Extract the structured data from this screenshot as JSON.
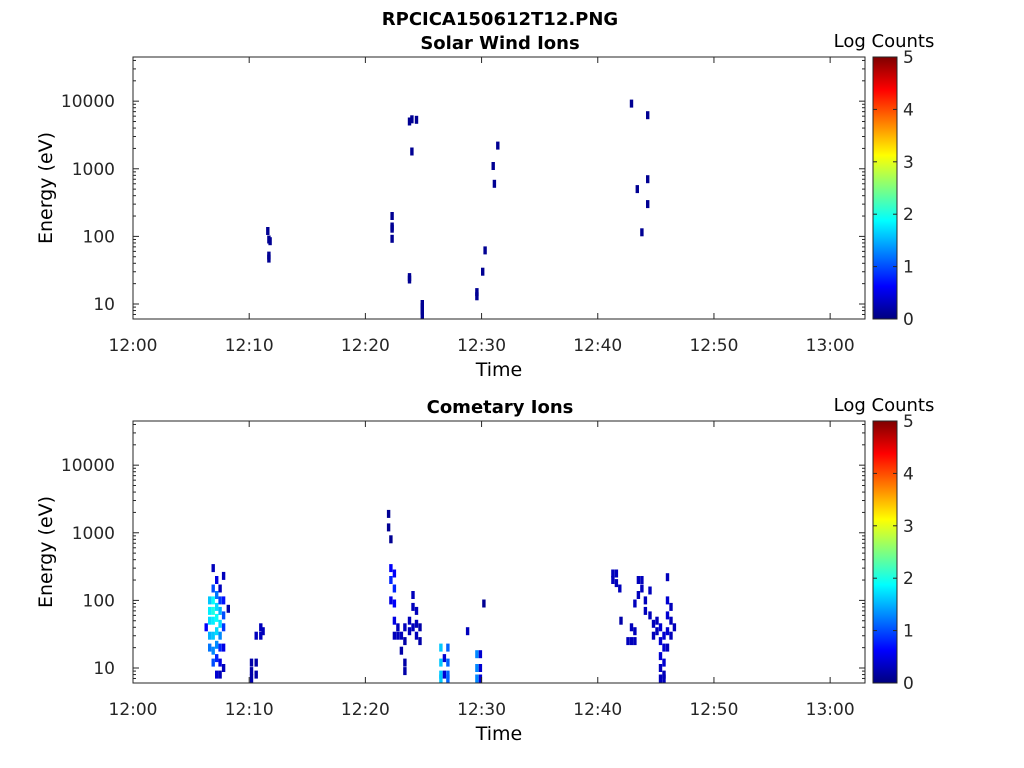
{
  "figure_title": "RPCICA150612T12.PNG",
  "colors": {
    "axis": "#262626",
    "colormap": [
      "#00007f",
      "#0000ff",
      "#007fff",
      "#00ffff",
      "#7fff7f",
      "#ffff00",
      "#ff7f00",
      "#ff0000",
      "#7f0000"
    ]
  },
  "chart_data": [
    {
      "type": "heatmap",
      "title": "Solar Wind Ions",
      "xlabel": "Time",
      "ylabel": "Energy (eV)",
      "x_range": [
        "12:00",
        "13:03"
      ],
      "y_range": [
        6,
        45000
      ],
      "y_scale": "log",
      "x_ticks": [
        "12:00",
        "12:10",
        "12:20",
        "12:30",
        "12:40",
        "12:50",
        "13:00"
      ],
      "y_ticks": [
        "10",
        "100",
        "1000",
        "10000"
      ],
      "colorbar": {
        "label": "Log Counts",
        "range": [
          0,
          5
        ],
        "ticks": [
          "0",
          "1",
          "2",
          "3",
          "4",
          "5"
        ]
      },
      "grid": false,
      "cells": [
        {
          "t": "12:11.6",
          "e": 120,
          "v": 0.1
        },
        {
          "t": "12:11.7",
          "e": 90,
          "v": 0.1
        },
        {
          "t": "12:11.8",
          "e": 85,
          "v": 0.1
        },
        {
          "t": "12:11.7",
          "e": 52,
          "v": 0.1
        },
        {
          "t": "12:11.7",
          "e": 47,
          "v": 0.1
        },
        {
          "t": "12:22.3",
          "e": 200,
          "v": 0.1
        },
        {
          "t": "12:22.3",
          "e": 140,
          "v": 0.1
        },
        {
          "t": "12:22.3",
          "e": 130,
          "v": 0.1
        },
        {
          "t": "12:22.3",
          "e": 92,
          "v": 0.1
        },
        {
          "t": "12:23.8",
          "e": 25,
          "v": 0.1
        },
        {
          "t": "12:23.8",
          "e": 23,
          "v": 0.1
        },
        {
          "t": "12:23.8",
          "e": 5000,
          "v": 0.1
        },
        {
          "t": "12:24.0",
          "e": 5400,
          "v": 0.1
        },
        {
          "t": "12:24.4",
          "e": 5300,
          "v": 0.1
        },
        {
          "t": "12:24.0",
          "e": 1800,
          "v": 0.1
        },
        {
          "t": "12:24.9",
          "e": 10,
          "v": 0.1
        },
        {
          "t": "12:24.9",
          "e": 9,
          "v": 0.1
        },
        {
          "t": "12:24.9",
          "e": 8,
          "v": 0.1
        },
        {
          "t": "12:24.9",
          "e": 7,
          "v": 0.1
        },
        {
          "t": "12:29.6",
          "e": 15,
          "v": 0.1
        },
        {
          "t": "12:29.6",
          "e": 13,
          "v": 0.1
        },
        {
          "t": "12:30.1",
          "e": 30,
          "v": 0.1
        },
        {
          "t": "12:30.3",
          "e": 62,
          "v": 0.1
        },
        {
          "t": "12:31.0",
          "e": 1100,
          "v": 0.1
        },
        {
          "t": "12:31.1",
          "e": 600,
          "v": 0.1
        },
        {
          "t": "12:31.4",
          "e": 2200,
          "v": 0.1
        },
        {
          "t": "12:42.9",
          "e": 9200,
          "v": 0.1
        },
        {
          "t": "12:44.3",
          "e": 6200,
          "v": 0.1
        },
        {
          "t": "12:43.4",
          "e": 500,
          "v": 0.1
        },
        {
          "t": "12:44.3",
          "e": 700,
          "v": 0.1
        },
        {
          "t": "12:44.3",
          "e": 300,
          "v": 0.1
        },
        {
          "t": "12:43.8",
          "e": 115,
          "v": 0.1
        }
      ]
    },
    {
      "type": "heatmap",
      "title": "Cometary Ions",
      "xlabel": "Time",
      "ylabel": "Energy (eV)",
      "x_range": [
        "12:00",
        "13:03"
      ],
      "y_range": [
        6,
        45000
      ],
      "y_scale": "log",
      "x_ticks": [
        "12:00",
        "12:10",
        "12:20",
        "12:30",
        "12:40",
        "12:50",
        "13:00"
      ],
      "y_ticks": [
        "10",
        "100",
        "1000",
        "10000"
      ],
      "colorbar": {
        "label": "Log Counts",
        "range": [
          0,
          5
        ],
        "ticks": [
          "0",
          "1",
          "2",
          "3",
          "4",
          "5"
        ]
      },
      "grid": false,
      "cells": [
        {
          "t": "12:06.3",
          "e": 40,
          "v": 0.6
        },
        {
          "t": "12:06.6",
          "e": 100,
          "v": 1.6
        },
        {
          "t": "12:06.6",
          "e": 70,
          "v": 1.8
        },
        {
          "t": "12:06.6",
          "e": 50,
          "v": 1.7
        },
        {
          "t": "12:06.6",
          "e": 30,
          "v": 1.5
        },
        {
          "t": "12:06.6",
          "e": 20,
          "v": 1.2
        },
        {
          "t": "12:06.9",
          "e": 300,
          "v": 0.3
        },
        {
          "t": "12:06.9",
          "e": 150,
          "v": 1.0
        },
        {
          "t": "12:06.9",
          "e": 100,
          "v": 1.9
        },
        {
          "t": "12:06.9",
          "e": 70,
          "v": 2.0
        },
        {
          "t": "12:06.9",
          "e": 50,
          "v": 1.8
        },
        {
          "t": "12:06.9",
          "e": 30,
          "v": 1.6
        },
        {
          "t": "12:06.9",
          "e": 18,
          "v": 1.3
        },
        {
          "t": "12:06.9",
          "e": 12,
          "v": 1.0
        },
        {
          "t": "12:07.2",
          "e": 200,
          "v": 0.5
        },
        {
          "t": "12:07.2",
          "e": 120,
          "v": 1.2
        },
        {
          "t": "12:07.2",
          "e": 80,
          "v": 1.7
        },
        {
          "t": "12:07.2",
          "e": 55,
          "v": 1.9
        },
        {
          "t": "12:07.2",
          "e": 35,
          "v": 1.7
        },
        {
          "t": "12:07.2",
          "e": 22,
          "v": 1.3
        },
        {
          "t": "12:07.2",
          "e": 14,
          "v": 0.8
        },
        {
          "t": "12:07.2",
          "e": 8,
          "v": 0.4
        },
        {
          "t": "12:07.5",
          "e": 150,
          "v": 0.3
        },
        {
          "t": "12:07.5",
          "e": 100,
          "v": 0.9
        },
        {
          "t": "12:07.5",
          "e": 70,
          "v": 1.5
        },
        {
          "t": "12:07.5",
          "e": 45,
          "v": 1.7
        },
        {
          "t": "12:07.5",
          "e": 30,
          "v": 1.3
        },
        {
          "t": "12:07.5",
          "e": 20,
          "v": 0.8
        },
        {
          "t": "12:07.5",
          "e": 12,
          "v": 0.5
        },
        {
          "t": "12:07.5",
          "e": 8,
          "v": 0.3
        },
        {
          "t": "12:07.8",
          "e": 230,
          "v": 0.3
        },
        {
          "t": "12:07.8",
          "e": 100,
          "v": 0.7
        },
        {
          "t": "12:07.8",
          "e": 60,
          "v": 1.0
        },
        {
          "t": "12:07.8",
          "e": 40,
          "v": 0.9
        },
        {
          "t": "12:07.8",
          "e": 20,
          "v": 0.5
        },
        {
          "t": "12:07.8",
          "e": 10,
          "v": 0.3
        },
        {
          "t": "12:08.2",
          "e": 75,
          "v": 0.2
        },
        {
          "t": "12:10.2",
          "e": 12,
          "v": 0.2
        },
        {
          "t": "12:10.2",
          "e": 9,
          "v": 0.2
        },
        {
          "t": "12:10.2",
          "e": 7,
          "v": 0.2
        },
        {
          "t": "12:10.6",
          "e": 30,
          "v": 0.3
        },
        {
          "t": "12:10.6",
          "e": 12,
          "v": 0.2
        },
        {
          "t": "12:10.6",
          "e": 8,
          "v": 0.2
        },
        {
          "t": "12:11.0",
          "e": 40,
          "v": 0.3
        },
        {
          "t": "12:11.0",
          "e": 30,
          "v": 0.3
        },
        {
          "t": "12:11.2",
          "e": 35,
          "v": 0.3
        },
        {
          "t": "12:22.0",
          "e": 1900,
          "v": 0.1
        },
        {
          "t": "12:22.0",
          "e": 1200,
          "v": 0.1
        },
        {
          "t": "12:22.2",
          "e": 800,
          "v": 0.1
        },
        {
          "t": "12:22.2",
          "e": 300,
          "v": 0.6
        },
        {
          "t": "12:22.2",
          "e": 200,
          "v": 0.8
        },
        {
          "t": "12:22.2",
          "e": 100,
          "v": 0.5
        },
        {
          "t": "12:22.5",
          "e": 250,
          "v": 0.6
        },
        {
          "t": "12:22.5",
          "e": 150,
          "v": 0.8
        },
        {
          "t": "12:22.5",
          "e": 90,
          "v": 0.6
        },
        {
          "t": "12:22.5",
          "e": 50,
          "v": 0.5
        },
        {
          "t": "12:22.5",
          "e": 30,
          "v": 0.3
        },
        {
          "t": "12:22.8",
          "e": 40,
          "v": 0.3
        },
        {
          "t": "12:22.8",
          "e": 30,
          "v": 0.3
        },
        {
          "t": "12:23.1",
          "e": 30,
          "v": 0.3
        },
        {
          "t": "12:23.1",
          "e": 18,
          "v": 0.2
        },
        {
          "t": "12:23.4",
          "e": 40,
          "v": 0.3
        },
        {
          "t": "12:23.4",
          "e": 25,
          "v": 0.2
        },
        {
          "t": "12:23.4",
          "e": 12,
          "v": 0.2
        },
        {
          "t": "12:23.4",
          "e": 9,
          "v": 0.2
        },
        {
          "t": "12:23.8",
          "e": 50,
          "v": 0.3
        },
        {
          "t": "12:23.8",
          "e": 35,
          "v": 0.3
        },
        {
          "t": "12:24.1",
          "e": 120,
          "v": 0.3
        },
        {
          "t": "12:24.1",
          "e": 80,
          "v": 0.3
        },
        {
          "t": "12:24.1",
          "e": 40,
          "v": 0.3
        },
        {
          "t": "12:24.4",
          "e": 70,
          "v": 0.3
        },
        {
          "t": "12:24.4",
          "e": 45,
          "v": 0.3
        },
        {
          "t": "12:24.4",
          "e": 30,
          "v": 0.3
        },
        {
          "t": "12:24.7",
          "e": 40,
          "v": 0.2
        },
        {
          "t": "12:24.7",
          "e": 25,
          "v": 0.2
        },
        {
          "t": "12:26.5",
          "e": 20,
          "v": 1.6
        },
        {
          "t": "12:26.5",
          "e": 12,
          "v": 1.6
        },
        {
          "t": "12:26.5",
          "e": 8,
          "v": 1.6
        },
        {
          "t": "12:26.5",
          "e": 7,
          "v": 1.6
        },
        {
          "t": "12:26.8",
          "e": 14,
          "v": 0.4
        },
        {
          "t": "12:26.8",
          "e": 8,
          "v": 0.4
        },
        {
          "t": "12:27.1",
          "e": 20,
          "v": 1.1
        },
        {
          "t": "12:27.1",
          "e": 12,
          "v": 1.1
        },
        {
          "t": "12:27.1",
          "e": 8,
          "v": 1.1
        },
        {
          "t": "12:27.1",
          "e": 7,
          "v": 1.1
        },
        {
          "t": "12:28.8",
          "e": 35,
          "v": 0.3
        },
        {
          "t": "12:29.6",
          "e": 16,
          "v": 1.3
        },
        {
          "t": "12:29.6",
          "e": 10,
          "v": 1.3
        },
        {
          "t": "12:29.6",
          "e": 7,
          "v": 1.3
        },
        {
          "t": "12:29.9",
          "e": 16,
          "v": 0.4
        },
        {
          "t": "12:29.9",
          "e": 10,
          "v": 0.4
        },
        {
          "t": "12:29.9",
          "e": 7,
          "v": 0.4
        },
        {
          "t": "12:30.2",
          "e": 90,
          "v": 0.1
        },
        {
          "t": "12:41.3",
          "e": 250,
          "v": 0.3
        },
        {
          "t": "12:41.3",
          "e": 200,
          "v": 0.3
        },
        {
          "t": "12:41.6",
          "e": 250,
          "v": 0.3
        },
        {
          "t": "12:41.6",
          "e": 180,
          "v": 0.3
        },
        {
          "t": "12:41.9",
          "e": 150,
          "v": 0.3
        },
        {
          "t": "12:42.0",
          "e": 50,
          "v": 0.2
        },
        {
          "t": "12:42.6",
          "e": 25,
          "v": 0.3
        },
        {
          "t": "12:42.9",
          "e": 25,
          "v": 0.3
        },
        {
          "t": "12:42.9",
          "e": 40,
          "v": 0.3
        },
        {
          "t": "12:43.2",
          "e": 25,
          "v": 0.3
        },
        {
          "t": "12:43.2",
          "e": 35,
          "v": 0.3
        },
        {
          "t": "12:43.2",
          "e": 90,
          "v": 0.3
        },
        {
          "t": "12:43.5",
          "e": 200,
          "v": 0.3
        },
        {
          "t": "12:43.5",
          "e": 120,
          "v": 0.3
        },
        {
          "t": "12:43.8",
          "e": 200,
          "v": 0.3
        },
        {
          "t": "12:43.8",
          "e": 150,
          "v": 0.3
        },
        {
          "t": "12:44.1",
          "e": 100,
          "v": 0.3
        },
        {
          "t": "12:44.1",
          "e": 70,
          "v": 0.3
        },
        {
          "t": "12:44.5",
          "e": 140,
          "v": 0.3
        },
        {
          "t": "12:44.5",
          "e": 60,
          "v": 0.3
        },
        {
          "t": "12:44.8",
          "e": 45,
          "v": 0.3
        },
        {
          "t": "12:44.8",
          "e": 30,
          "v": 0.3
        },
        {
          "t": "12:45.1",
          "e": 50,
          "v": 0.3
        },
        {
          "t": "12:45.1",
          "e": 35,
          "v": 0.3
        },
        {
          "t": "12:45.4",
          "e": 40,
          "v": 0.4
        },
        {
          "t": "12:45.4",
          "e": 25,
          "v": 0.4
        },
        {
          "t": "12:45.4",
          "e": 15,
          "v": 0.4
        },
        {
          "t": "12:45.4",
          "e": 10,
          "v": 0.3
        },
        {
          "t": "12:45.4",
          "e": 7,
          "v": 0.3
        },
        {
          "t": "12:45.7",
          "e": 30,
          "v": 0.4
        },
        {
          "t": "12:45.7",
          "e": 20,
          "v": 0.4
        },
        {
          "t": "12:45.7",
          "e": 12,
          "v": 0.4
        },
        {
          "t": "12:45.7",
          "e": 8,
          "v": 0.3
        },
        {
          "t": "12:45.7",
          "e": 7,
          "v": 0.3
        },
        {
          "t": "12:46.0",
          "e": 220,
          "v": 0.3
        },
        {
          "t": "12:46.0",
          "e": 100,
          "v": 0.4
        },
        {
          "t": "12:46.0",
          "e": 60,
          "v": 0.4
        },
        {
          "t": "12:46.0",
          "e": 35,
          "v": 0.4
        },
        {
          "t": "12:46.0",
          "e": 20,
          "v": 0.3
        },
        {
          "t": "12:46.3",
          "e": 80,
          "v": 0.3
        },
        {
          "t": "12:46.3",
          "e": 50,
          "v": 0.3
        },
        {
          "t": "12:46.3",
          "e": 30,
          "v": 0.3
        },
        {
          "t": "12:46.6",
          "e": 40,
          "v": 0.3
        }
      ]
    }
  ]
}
